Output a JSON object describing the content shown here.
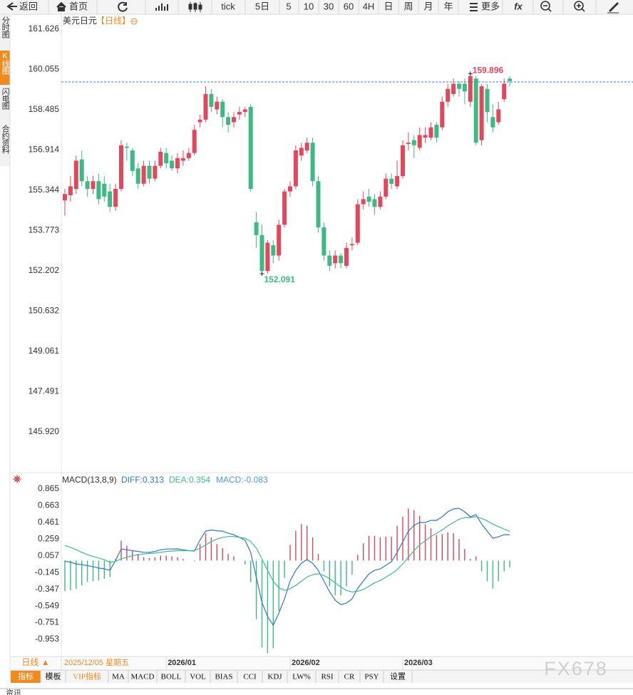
{
  "toolbar": [
    "返回",
    "首页",
    "tick",
    "5日",
    "5",
    "10",
    "30",
    "60",
    "4H",
    "日",
    "周",
    "月",
    "年",
    "更多",
    "fx"
  ],
  "side_tabs": [
    "分时图",
    "K线图",
    "闪电图",
    "合约资料"
  ],
  "chart_data": [
    {
      "type": "candlestick",
      "title": "美元日元",
      "subtitle": "【日线】",
      "categories": [
        null,
        null,
        null,
        null,
        null,
        null,
        null,
        null,
        null,
        null,
        null,
        null,
        null,
        null,
        null,
        null,
        null,
        null,
        "2026/01",
        null,
        null,
        null,
        null,
        null,
        null,
        null,
        null,
        null,
        null,
        null,
        null,
        null,
        null,
        null,
        null,
        null,
        null,
        null,
        null,
        null,
        "2026/02",
        null,
        null,
        null,
        null,
        null,
        null,
        null,
        null,
        null,
        null,
        null,
        null,
        null,
        null,
        null,
        null,
        null,
        null,
        null,
        "2026/03",
        null,
        null,
        null,
        null,
        null,
        null,
        null,
        null,
        null,
        null,
        null,
        null,
        null,
        null,
        null,
        null,
        null,
        null,
        null
      ],
      "ohlc": [
        [
          154.95,
          155.4,
          154.35,
          155.2
        ],
        [
          155.15,
          155.9,
          154.9,
          155.5
        ],
        [
          155.4,
          156.7,
          155.2,
          156.5
        ],
        [
          156.55,
          156.9,
          155.5,
          155.7
        ],
        [
          155.7,
          155.9,
          155.1,
          155.4
        ],
        [
          155.4,
          155.9,
          155.2,
          155.7
        ],
        [
          155.7,
          156.0,
          154.8,
          155.0
        ],
        [
          155.6,
          155.9,
          154.9,
          155.1
        ],
        [
          155.3,
          155.6,
          154.5,
          154.7
        ],
        [
          154.7,
          155.6,
          154.55,
          155.4
        ],
        [
          155.4,
          157.3,
          155.3,
          157.1
        ],
        [
          157.05,
          157.2,
          156.5,
          157.0
        ],
        [
          156.9,
          157.0,
          155.9,
          156.1
        ],
        [
          156.2,
          156.4,
          155.4,
          155.6
        ],
        [
          155.6,
          156.5,
          155.5,
          156.3
        ],
        [
          156.3,
          156.5,
          155.6,
          155.8
        ],
        [
          155.8,
          156.5,
          155.7,
          156.3
        ],
        [
          156.3,
          157.0,
          156.2,
          156.85
        ],
        [
          156.8,
          157.0,
          156.2,
          156.4
        ],
        [
          156.5,
          156.7,
          156.1,
          156.2
        ],
        [
          156.2,
          156.8,
          156.0,
          156.6
        ],
        [
          156.5,
          156.9,
          156.3,
          156.6
        ],
        [
          156.6,
          157.0,
          156.5,
          156.8
        ],
        [
          156.8,
          157.9,
          156.7,
          157.7
        ],
        [
          158.0,
          158.3,
          157.8,
          158.1
        ],
        [
          158.1,
          159.4,
          158.0,
          159.1
        ],
        [
          159.1,
          159.3,
          158.4,
          158.6
        ],
        [
          158.5,
          159.0,
          158.3,
          158.8
        ],
        [
          158.8,
          158.9,
          157.8,
          158.2
        ],
        [
          158.2,
          158.4,
          157.6,
          157.9
        ],
        [
          158.0,
          158.4,
          157.8,
          158.2
        ],
        [
          158.3,
          158.6,
          158.1,
          158.4
        ],
        [
          158.4,
          158.6,
          158.2,
          158.5
        ],
        [
          158.6,
          158.7,
          155.3,
          155.4
        ],
        [
          154.1,
          154.5,
          153.1,
          153.6
        ],
        [
          153.6,
          154.0,
          152.091,
          152.2
        ],
        [
          152.2,
          153.4,
          152.1,
          153.3
        ],
        [
          153.2,
          153.4,
          152.5,
          152.8
        ],
        [
          152.8,
          154.2,
          152.6,
          154.0
        ],
        [
          154.0,
          155.4,
          153.9,
          155.3
        ],
        [
          155.3,
          155.7,
          155.1,
          155.5
        ],
        [
          155.5,
          157.1,
          155.4,
          156.9
        ],
        [
          156.7,
          157.2,
          156.5,
          157.0
        ],
        [
          156.9,
          157.4,
          156.8,
          157.2
        ],
        [
          157.2,
          157.4,
          155.5,
          155.7
        ],
        [
          155.7,
          155.9,
          153.7,
          153.9
        ],
        [
          153.9,
          154.1,
          152.6,
          152.8
        ],
        [
          152.8,
          153.0,
          152.2,
          152.4
        ],
        [
          152.5,
          153.0,
          152.3,
          152.8
        ],
        [
          152.8,
          152.9,
          152.3,
          152.5
        ],
        [
          152.4,
          153.3,
          152.3,
          153.1
        ],
        [
          153.2,
          153.5,
          153.0,
          153.25
        ],
        [
          153.3,
          155.0,
          153.2,
          154.8
        ],
        [
          154.8,
          155.3,
          154.6,
          155.0
        ],
        [
          155.1,
          155.4,
          154.7,
          154.9
        ],
        [
          155.0,
          155.2,
          154.4,
          154.7
        ],
        [
          154.7,
          155.3,
          154.6,
          155.1
        ],
        [
          155.1,
          156.0,
          155.0,
          155.8
        ],
        [
          155.8,
          156.0,
          155.4,
          155.6
        ],
        [
          155.5,
          156.5,
          155.4,
          155.9
        ],
        [
          155.9,
          157.3,
          155.8,
          157.1
        ],
        [
          157.15,
          157.6,
          156.9,
          157.2
        ],
        [
          157.3,
          157.5,
          156.6,
          157.1
        ],
        [
          157.0,
          157.8,
          156.9,
          157.5
        ],
        [
          157.4,
          157.8,
          157.2,
          157.5
        ],
        [
          157.4,
          158.0,
          157.3,
          157.8
        ],
        [
          157.9,
          158.0,
          157.2,
          157.4
        ],
        [
          157.8,
          159.0,
          157.7,
          158.8
        ],
        [
          158.8,
          159.5,
          158.6,
          159.3
        ],
        [
          159.1,
          159.7,
          159.0,
          159.5
        ],
        [
          159.5,
          159.6,
          159.0,
          159.3
        ],
        [
          159.5,
          159.7,
          158.7,
          159.2
        ],
        [
          158.8,
          159.896,
          158.6,
          159.8
        ],
        [
          159.7,
          159.8,
          157.1,
          157.2
        ],
        [
          157.3,
          159.5,
          157.1,
          159.4
        ],
        [
          159.3,
          159.5,
          158.0,
          158.4
        ],
        [
          158.2,
          158.7,
          157.6,
          157.8
        ],
        [
          158.0,
          158.8,
          157.9,
          158.5
        ],
        [
          158.9,
          159.7,
          158.8,
          159.5
        ],
        [
          159.7,
          159.8,
          159.4,
          159.6
        ]
      ],
      "up_color": "#e2475b",
      "down_color": "#3db983",
      "ylim": [
        144.42,
        162.21
      ],
      "yticks": [
        161.626,
        160.055,
        158.485,
        156.914,
        155.344,
        153.773,
        152.202,
        150.632,
        149.061,
        147.491,
        {
          "value": 145.92,
          "label": "145.920"
        }
      ],
      "grid": false,
      "last_price_line": 159.57,
      "last_price_color": "#3a7bd5",
      "max_label": 159.896,
      "min_label": 152.091
    },
    {
      "type": "macd",
      "title": "MACD(13,8,9)",
      "series": [
        {
          "name": "DIFF:0.313",
          "color": "#2f74d6",
          "values": [
            -0.006,
            -0.02,
            -0.04,
            -0.05,
            -0.06,
            -0.075,
            -0.09,
            -0.1,
            -0.118,
            0.0,
            0.141,
            0.13,
            0.12,
            0.11,
            0.1,
            0.098,
            0.11,
            0.13,
            0.14,
            0.14,
            0.141,
            0.13,
            0.12,
            0.115,
            0.25,
            0.356,
            0.37,
            0.36,
            0.356,
            0.33,
            0.313,
            0.28,
            0.244,
            0.098,
            -0.204,
            -0.506,
            -0.678,
            -0.782,
            -0.635,
            -0.463,
            -0.247,
            -0.118,
            -0.032,
            0.012,
            -0.032,
            -0.118,
            -0.247,
            -0.376,
            -0.48,
            -0.532,
            -0.514,
            -0.463,
            -0.333,
            -0.247,
            -0.161,
            -0.118,
            -0.101,
            -0.057,
            -0.014,
            0.098,
            0.227,
            0.356,
            0.425,
            0.46,
            0.46,
            0.486,
            0.486,
            0.529,
            0.589,
            0.624,
            0.632,
            0.589,
            0.529,
            0.555,
            0.443,
            0.356,
            0.27,
            0.287,
            0.313,
            0.313
          ]
        },
        {
          "name": "DEA:0.354",
          "color": "#3dbd8b",
          "values": [
            0.18,
            0.16,
            0.13,
            0.1,
            0.07,
            0.05,
            0.03,
            0.01,
            -0.02,
            -0.01,
            0.02,
            0.04,
            0.06,
            0.07,
            0.08,
            0.085,
            0.09,
            0.1,
            0.11,
            0.115,
            0.12,
            0.12,
            0.12,
            0.12,
            0.15,
            0.19,
            0.23,
            0.26,
            0.28,
            0.29,
            0.29,
            0.28,
            0.27,
            0.23,
            0.15,
            0.02,
            -0.12,
            -0.25,
            -0.33,
            -0.36,
            -0.34,
            -0.3,
            -0.25,
            -0.2,
            -0.17,
            -0.16,
            -0.18,
            -0.22,
            -0.27,
            -0.32,
            -0.36,
            -0.38,
            -0.37,
            -0.35,
            -0.31,
            -0.27,
            -0.24,
            -0.2,
            -0.16,
            -0.11,
            -0.04,
            0.04,
            0.12,
            0.19,
            0.24,
            0.29,
            0.33,
            0.37,
            0.42,
            0.46,
            0.5,
            0.52,
            0.52,
            0.53,
            0.51,
            0.48,
            0.44,
            0.41,
            0.38,
            0.354
          ]
        },
        {
          "name": "MACD:-0.083",
          "color": "#4a9fd8",
          "up_color": "#d2495d",
          "down_color": "#3db983",
          "values": [
            -0.37,
            -0.36,
            -0.34,
            -0.3,
            -0.26,
            -0.25,
            -0.24,
            -0.22,
            -0.2,
            0.02,
            0.24,
            0.18,
            0.12,
            0.08,
            0.04,
            0.03,
            0.04,
            0.06,
            0.06,
            0.05,
            0.04,
            0.02,
            0.0,
            -0.01,
            0.2,
            0.33,
            0.28,
            0.2,
            0.15,
            0.08,
            0.05,
            0.0,
            -0.05,
            -0.26,
            -0.71,
            -1.05,
            -1.12,
            -1.06,
            -0.61,
            -0.21,
            0.19,
            0.36,
            0.44,
            0.42,
            0.28,
            0.08,
            -0.13,
            -0.31,
            -0.42,
            -0.42,
            -0.31,
            -0.17,
            0.07,
            0.21,
            0.3,
            0.3,
            0.28,
            0.29,
            0.29,
            0.42,
            0.53,
            0.63,
            0.61,
            0.54,
            0.44,
            0.39,
            0.31,
            0.32,
            0.34,
            0.33,
            0.26,
            0.14,
            0.02,
            0.05,
            -0.13,
            -0.25,
            -0.34,
            -0.25,
            -0.13,
            -0.083
          ]
        }
      ],
      "ylim": [
        -1.151,
        1.046
      ],
      "yticks": [
        0.865,
        0.663,
        0.461,
        0.259,
        0.057,
        -0.145,
        -0.347,
        -0.549,
        -0.751,
        -0.953
      ]
    }
  ],
  "bottom_bar": {
    "period_button": "日线 ▲",
    "selected_date": "2025/12/05 星期五",
    "tabs": [
      "指标",
      "模板",
      "VIP指标",
      "MA",
      "MACD",
      "BOLL",
      "VOL",
      "BIAS",
      "CCI",
      "KDJ",
      "LW%",
      "RSI",
      "CR",
      "PSY",
      "设置"
    ]
  },
  "footer_tab": "资讯",
  "watermark": "FX678"
}
